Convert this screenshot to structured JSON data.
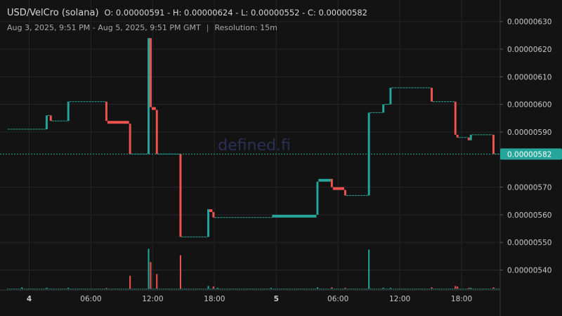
{
  "header": {
    "pair": "USD/VelCro (solana)",
    "ohlc": "O: 0.00000591 - H: 0.00000624 - L: 0.00000552 - C: 0.00000582",
    "range": "Aug 3, 2025, 9:51 PM - Aug 5, 2025, 9:51 PM GMT",
    "separator": "|",
    "resolution": "Resolution: 15m"
  },
  "watermark": "defined.fi",
  "colors": {
    "up": "#26a69a",
    "down": "#ef5350",
    "background": "#131313",
    "grid": "#262626",
    "price_tag": "#26a69a"
  },
  "chart_data": {
    "type": "candlestick",
    "ylim": [
      5.33e-06,
      6.34e-06
    ],
    "y_ticks": [
      "0.00000630",
      "0.00000620",
      "0.00000610",
      "0.00000600",
      "0.00000590",
      "0.00000570",
      "0.00000560",
      "0.00000550",
      "0.00000540"
    ],
    "x_ticks": [
      {
        "label": "4",
        "h": 0,
        "bold": true
      },
      {
        "label": "06:00",
        "h": 6,
        "bold": false
      },
      {
        "label": "12:00",
        "h": 12,
        "bold": false
      },
      {
        "label": "18:00",
        "h": 18,
        "bold": false
      },
      {
        "label": "5",
        "h": 24,
        "bold": true
      },
      {
        "label": "06:00",
        "h": 30,
        "bold": false
      },
      {
        "label": "12:00",
        "h": 36,
        "bold": false
      },
      {
        "label": "18:00",
        "h": 42,
        "bold": false
      }
    ],
    "x_range_hours": [
      -2.15,
      45.75
    ],
    "last_price": "0.00000582",
    "last_price_value": 5.82e-06,
    "candles": [
      {
        "t": -2.1,
        "t2": 1.6,
        "o": 5.91e-06,
        "c": 5.91e-06
      },
      {
        "t": 1.6,
        "t2": 1.8,
        "o": 5.91e-06,
        "c": 5.96e-06
      },
      {
        "t": 1.8,
        "t2": 2.0,
        "o": 5.96e-06,
        "c": 5.96e-06
      },
      {
        "t": 2.0,
        "t2": 2.2,
        "o": 5.96e-06,
        "c": 5.94e-06
      },
      {
        "t": 2.2,
        "t2": 3.7,
        "o": 5.94e-06,
        "c": 5.94e-06
      },
      {
        "t": 3.7,
        "t2": 3.9,
        "o": 5.94e-06,
        "c": 6.01e-06
      },
      {
        "t": 3.9,
        "t2": 7.4,
        "o": 6.01e-06,
        "c": 6.01e-06
      },
      {
        "t": 7.4,
        "t2": 7.6,
        "o": 6.01e-06,
        "c": 5.94e-06
      },
      {
        "t": 7.6,
        "t2": 9.7,
        "o": 5.94e-06,
        "c": 5.93e-06
      },
      {
        "t": 9.7,
        "t2": 9.9,
        "o": 5.93e-06,
        "c": 5.82e-06
      },
      {
        "t": 9.9,
        "t2": 11.5,
        "o": 5.82e-06,
        "c": 5.82e-06
      },
      {
        "t": 11.5,
        "t2": 11.7,
        "o": 5.82e-06,
        "c": 6.24e-06
      },
      {
        "t": 11.7,
        "t2": 11.9,
        "o": 6.24e-06,
        "c": 5.99e-06
      },
      {
        "t": 11.9,
        "t2": 12.3,
        "o": 5.99e-06,
        "c": 5.98e-06
      },
      {
        "t": 12.3,
        "t2": 12.5,
        "o": 5.98e-06,
        "c": 5.82e-06
      },
      {
        "t": 12.5,
        "t2": 14.6,
        "o": 5.82e-06,
        "c": 5.82e-06
      },
      {
        "t": 14.6,
        "t2": 14.8,
        "o": 5.82e-06,
        "c": 5.52e-06
      },
      {
        "t": 14.8,
        "t2": 17.3,
        "o": 5.52e-06,
        "c": 5.52e-06
      },
      {
        "t": 17.3,
        "t2": 17.5,
        "o": 5.52e-06,
        "c": 5.62e-06
      },
      {
        "t": 17.5,
        "t2": 17.8,
        "o": 5.62e-06,
        "c": 5.61e-06
      },
      {
        "t": 17.8,
        "t2": 18.0,
        "o": 5.61e-06,
        "c": 5.59e-06
      },
      {
        "t": 18.0,
        "t2": 23.6,
        "o": 5.59e-06,
        "c": 5.59e-06
      },
      {
        "t": 23.6,
        "t2": 27.9,
        "o": 5.59e-06,
        "c": 5.6e-06
      },
      {
        "t": 27.9,
        "t2": 28.1,
        "o": 5.6e-06,
        "c": 5.72e-06
      },
      {
        "t": 28.1,
        "t2": 29.3,
        "o": 5.72e-06,
        "c": 5.73e-06
      },
      {
        "t": 29.3,
        "t2": 29.5,
        "o": 5.73e-06,
        "c": 5.7e-06
      },
      {
        "t": 29.5,
        "t2": 30.6,
        "o": 5.7e-06,
        "c": 5.69e-06
      },
      {
        "t": 30.6,
        "t2": 30.8,
        "o": 5.69e-06,
        "c": 5.67e-06
      },
      {
        "t": 30.8,
        "t2": 32.9,
        "o": 5.67e-06,
        "c": 5.67e-06
      },
      {
        "t": 32.9,
        "t2": 33.1,
        "o": 5.67e-06,
        "c": 5.97e-06
      },
      {
        "t": 33.1,
        "t2": 34.3,
        "o": 5.97e-06,
        "c": 5.97e-06
      },
      {
        "t": 34.3,
        "t2": 34.5,
        "o": 5.97e-06,
        "c": 6e-06
      },
      {
        "t": 34.5,
        "t2": 35.0,
        "o": 6e-06,
        "c": 6e-06
      },
      {
        "t": 35.0,
        "t2": 35.2,
        "o": 6e-06,
        "c": 6.06e-06
      },
      {
        "t": 35.2,
        "t2": 39.0,
        "o": 6.06e-06,
        "c": 6.06e-06
      },
      {
        "t": 39.0,
        "t2": 39.2,
        "o": 6.06e-06,
        "c": 6.01e-06
      },
      {
        "t": 39.2,
        "t2": 41.3,
        "o": 6.01e-06,
        "c": 6.01e-06
      },
      {
        "t": 41.3,
        "t2": 41.5,
        "o": 6.01e-06,
        "c": 5.89e-06
      },
      {
        "t": 41.5,
        "t2": 41.7,
        "o": 5.89e-06,
        "c": 5.88e-06
      },
      {
        "t": 41.7,
        "t2": 42.6,
        "o": 5.88e-06,
        "c": 5.88e-06
      },
      {
        "t": 42.6,
        "t2": 42.8,
        "o": 5.88e-06,
        "c": 5.87e-06
      },
      {
        "t": 42.8,
        "t2": 43.0,
        "o": 5.87e-06,
        "c": 5.89e-06
      },
      {
        "t": 43.0,
        "t2": 45.0,
        "o": 5.89e-06,
        "c": 5.89e-06
      },
      {
        "t": 45.0,
        "t2": 45.2,
        "o": 5.89e-06,
        "c": 5.82e-06
      },
      {
        "t": 45.2,
        "t2": 45.75,
        "o": 5.82e-06,
        "c": 5.82e-06
      }
    ],
    "volume": [
      {
        "t": -0.7,
        "v": 0.03,
        "up": true
      },
      {
        "t": 1.7,
        "v": 0.02,
        "up": true
      },
      {
        "t": 3.8,
        "v": 0.02,
        "up": true
      },
      {
        "t": 7.5,
        "v": 0.01,
        "up": false
      },
      {
        "t": 9.8,
        "v": 0.3,
        "up": false
      },
      {
        "t": 11.6,
        "v": 0.93,
        "up": true
      },
      {
        "t": 11.8,
        "v": 0.62,
        "up": false
      },
      {
        "t": 12.4,
        "v": 0.34,
        "up": false
      },
      {
        "t": 14.7,
        "v": 0.78,
        "up": false
      },
      {
        "t": 17.4,
        "v": 0.06,
        "up": true
      },
      {
        "t": 17.9,
        "v": 0.05,
        "up": false
      },
      {
        "t": 18.3,
        "v": 0.02,
        "up": true
      },
      {
        "t": 23.5,
        "v": 0.02,
        "up": true
      },
      {
        "t": 28.0,
        "v": 0.03,
        "up": true
      },
      {
        "t": 29.4,
        "v": 0.03,
        "up": false
      },
      {
        "t": 30.7,
        "v": 0.02,
        "up": false
      },
      {
        "t": 33.0,
        "v": 0.91,
        "up": true
      },
      {
        "t": 34.4,
        "v": 0.02,
        "up": true
      },
      {
        "t": 35.1,
        "v": 0.02,
        "up": true
      },
      {
        "t": 39.1,
        "v": 0.03,
        "up": false
      },
      {
        "t": 41.4,
        "v": 0.06,
        "up": false
      },
      {
        "t": 41.6,
        "v": 0.05,
        "up": false
      },
      {
        "t": 42.7,
        "v": 0.02,
        "up": false
      },
      {
        "t": 42.9,
        "v": 0.02,
        "up": true
      },
      {
        "t": 45.1,
        "v": 0.03,
        "up": false
      }
    ]
  }
}
